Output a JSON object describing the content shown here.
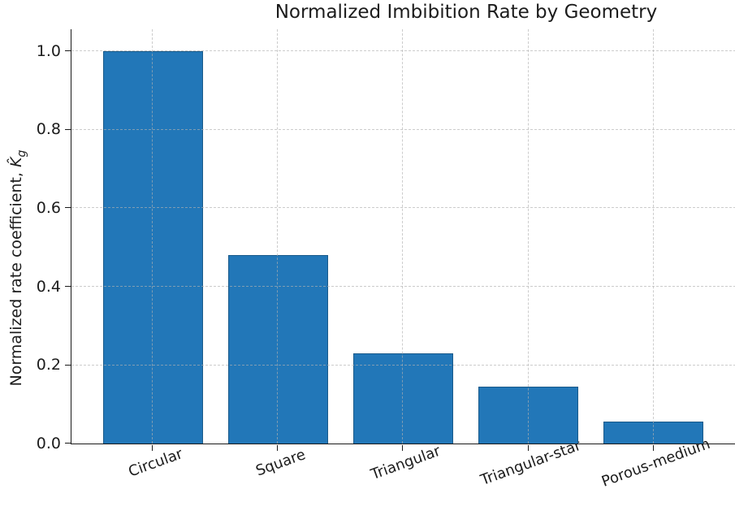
{
  "chart_data": {
    "type": "bar",
    "title": "Normalized Imbibition Rate by Geometry",
    "categories": [
      "Circular",
      "Square",
      "Triangular",
      "Triangular-star",
      "Porous-medium"
    ],
    "values": [
      1.0,
      0.48,
      0.23,
      0.145,
      0.055
    ],
    "xlabel": "",
    "ylabel": "Normalized rate coefficient, K̂g",
    "ylabel_prefix": "Normalized rate coefficient, ",
    "ylabel_symbol": "K̂",
    "ylabel_subscript": "g",
    "yticks": [
      "0.0",
      "0.2",
      "0.4",
      "0.6",
      "0.8",
      "1.0"
    ],
    "ylim": [
      0,
      1.055
    ],
    "grid": true,
    "legend": "none",
    "bar_color": "#2277b8",
    "bar_edge_color": "#1a5a8a",
    "grid_color": "#b0b0b0",
    "axis_color": "#1a1a1a",
    "text_color": "#1c1c1c",
    "x_tick_rotation_deg": 20
  }
}
